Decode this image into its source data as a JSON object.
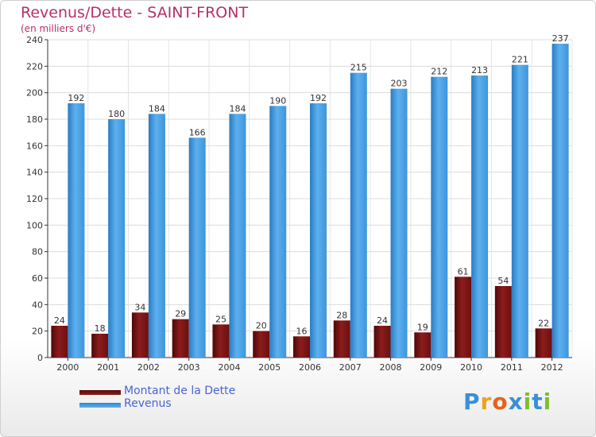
{
  "header": {
    "title": "Revenus/Dette - SAINT-FRONT",
    "subtitle": "(en milliers d'€)"
  },
  "colors": {
    "title": "#b5306a",
    "dette": "#7a1515",
    "revenus": "#4aa3e8",
    "legend_text": "#4a63d6"
  },
  "chart_data": {
    "type": "bar",
    "title": "Revenus/Dette - SAINT-FRONT",
    "ylabel": "(en milliers d'€)",
    "xlabel": "",
    "ylim": [
      0,
      240
    ],
    "yticks": [
      0,
      20,
      40,
      60,
      80,
      100,
      120,
      140,
      160,
      180,
      200,
      220,
      240
    ],
    "grid": true,
    "categories": [
      "2000",
      "2001",
      "2002",
      "2003",
      "2004",
      "2005",
      "2006",
      "2007",
      "2008",
      "2009",
      "2010",
      "2011",
      "2012"
    ],
    "series": [
      {
        "name": "Montant de la Dette",
        "values": [
          24,
          18,
          34,
          29,
          25,
          20,
          16,
          28,
          24,
          19,
          61,
          54,
          22
        ]
      },
      {
        "name": "Revenus",
        "values": [
          192,
          180,
          184,
          166,
          184,
          190,
          192,
          215,
          203,
          212,
          213,
          221,
          237
        ]
      }
    ]
  },
  "legend": {
    "items": [
      {
        "label": "Montant de la Dette"
      },
      {
        "label": "Revenus"
      }
    ]
  },
  "logo": {
    "letters": [
      "P",
      "r",
      "o",
      "x",
      "i",
      "t",
      "i"
    ]
  }
}
